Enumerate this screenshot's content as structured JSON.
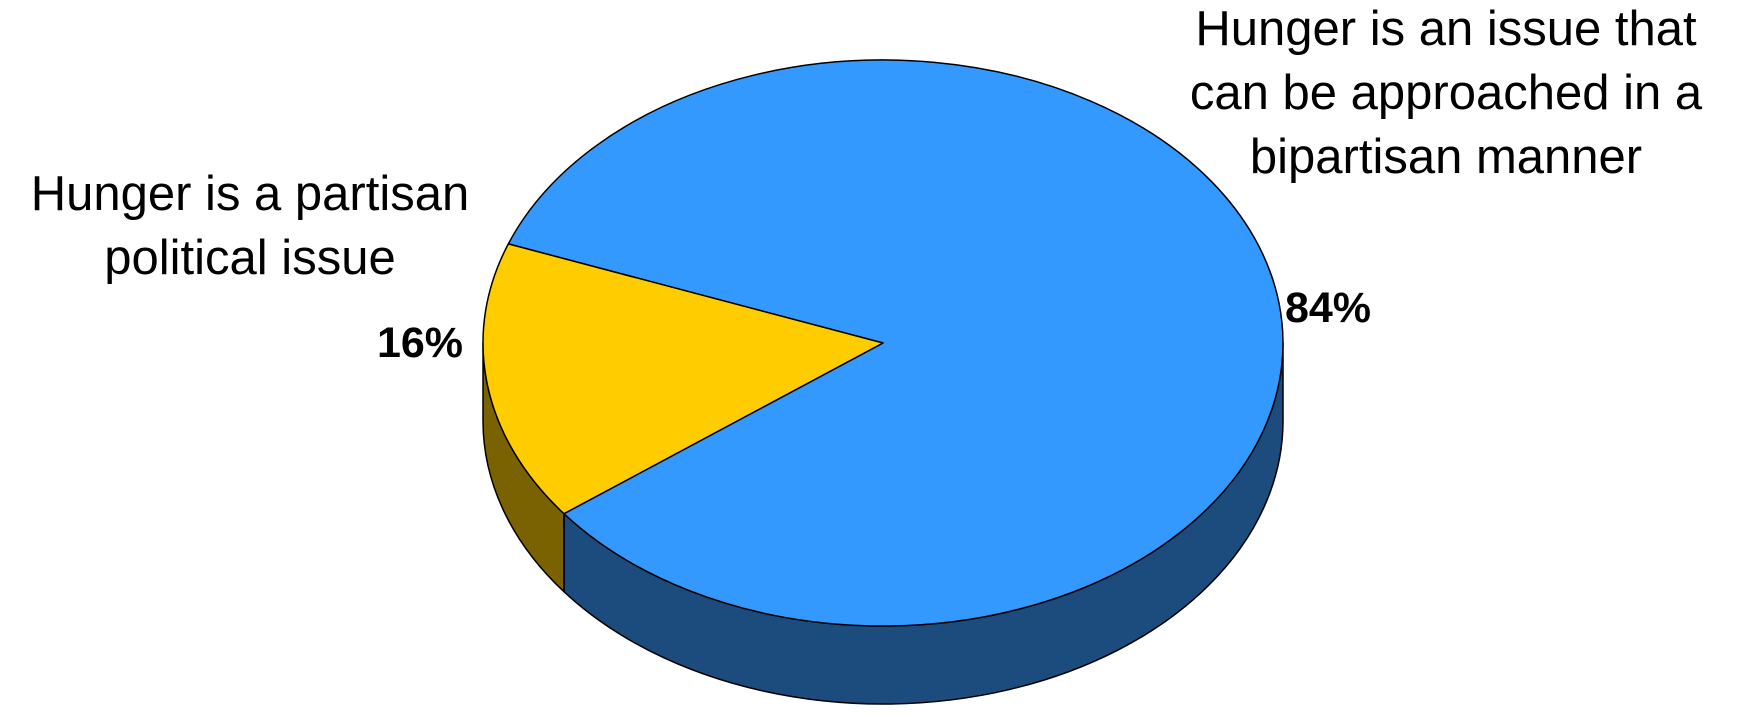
{
  "chart_data": {
    "type": "pie",
    "style": "3d",
    "title": "",
    "legend": "none",
    "slices": [
      {
        "label_lines": [
          "Hunger is an issue that",
          "can be approached in a",
          "bipartisan manner"
        ],
        "value": 84,
        "value_label": "84%",
        "color": "#3399FF",
        "side_color": "#1C4B7D"
      },
      {
        "label_lines": [
          "Hunger is a partisan",
          "political issue"
        ],
        "value": 16,
        "value_label": "16%",
        "color": "#FFCC00",
        "side_color": "#7A6200"
      }
    ]
  }
}
